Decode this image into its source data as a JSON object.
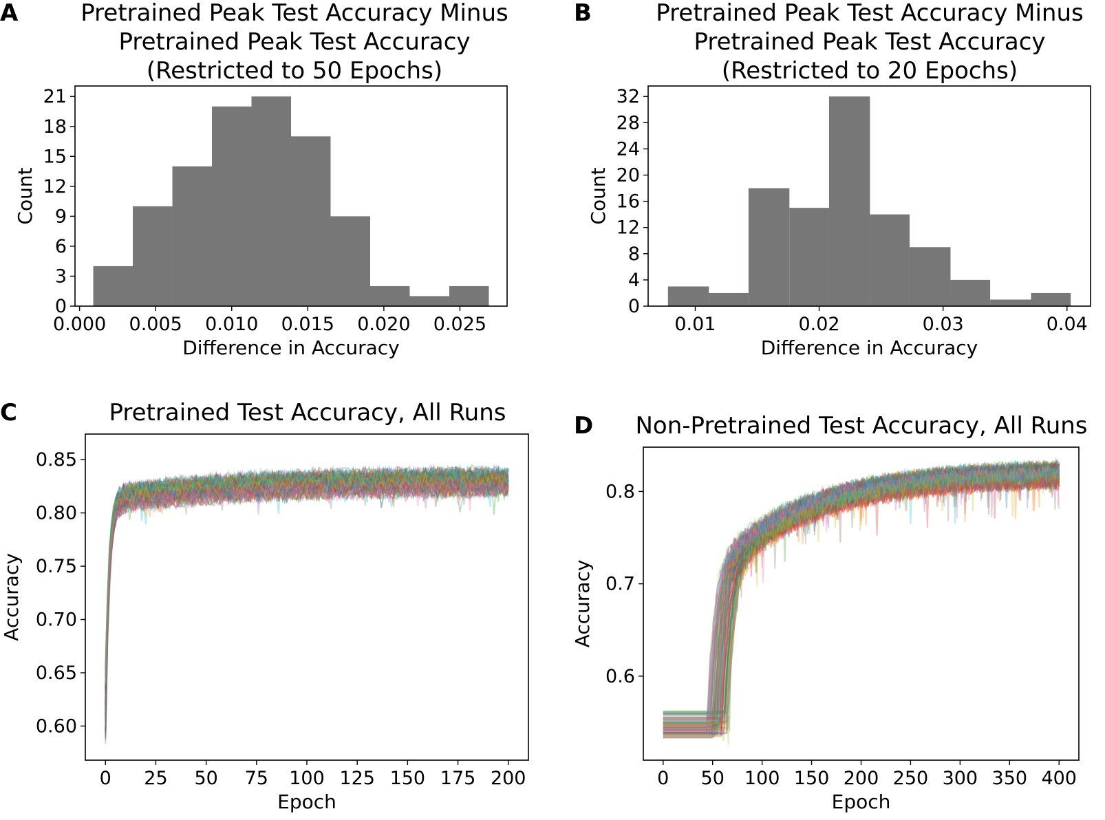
{
  "chart_data": [
    {
      "id": "A",
      "panel_label": "A",
      "type": "bar",
      "title_lines": [
        "Pretrained Peak Test Accuracy Minus",
        "Pretrained Peak Test Accuracy",
        "(Restricted to 50 Epochs)"
      ],
      "xlabel": "Difference in Accuracy",
      "ylabel": "Count",
      "bins": [
        {
          "x0": 0.0009,
          "x1": 0.0035,
          "count": 4
        },
        {
          "x0": 0.0035,
          "x1": 0.0061,
          "count": 10
        },
        {
          "x0": 0.0061,
          "x1": 0.0087,
          "count": 14
        },
        {
          "x0": 0.0087,
          "x1": 0.0113,
          "count": 20
        },
        {
          "x0": 0.0113,
          "x1": 0.0139,
          "count": 21
        },
        {
          "x0": 0.0139,
          "x1": 0.0165,
          "count": 17
        },
        {
          "x0": 0.0165,
          "x1": 0.0191,
          "count": 9
        },
        {
          "x0": 0.0191,
          "x1": 0.0217,
          "count": 2
        },
        {
          "x0": 0.0217,
          "x1": 0.0243,
          "count": 1
        },
        {
          "x0": 0.0243,
          "x1": 0.0269,
          "count": 2
        }
      ],
      "xlim": [
        -0.0003,
        0.0281
      ],
      "ylim": [
        0,
        22.05
      ],
      "xticks": [
        0.0,
        0.005,
        0.01,
        0.015,
        0.02,
        0.025
      ],
      "xtick_labels": [
        "0.000",
        "0.005",
        "0.010",
        "0.015",
        "0.020",
        "0.025"
      ],
      "yticks": [
        0,
        3,
        6,
        9,
        12,
        15,
        18,
        21
      ],
      "ytick_labels": [
        "0",
        "3",
        "6",
        "9",
        "12",
        "15",
        "18",
        "21"
      ],
      "bar_color": "#777777"
    },
    {
      "id": "B",
      "panel_label": "B",
      "type": "bar",
      "title_lines": [
        "Pretrained Peak Test Accuracy Minus",
        "Pretrained Peak Test Accuracy",
        "(Restricted to 20 Epochs)"
      ],
      "xlabel": "Difference in Accuracy",
      "ylabel": "Count",
      "bins": [
        {
          "x0": 0.0078,
          "x1": 0.0111,
          "count": 3
        },
        {
          "x0": 0.0111,
          "x1": 0.0143,
          "count": 2
        },
        {
          "x0": 0.0143,
          "x1": 0.0176,
          "count": 18
        },
        {
          "x0": 0.0176,
          "x1": 0.0208,
          "count": 15
        },
        {
          "x0": 0.0208,
          "x1": 0.0241,
          "count": 32
        },
        {
          "x0": 0.0241,
          "x1": 0.0273,
          "count": 14
        },
        {
          "x0": 0.0273,
          "x1": 0.0306,
          "count": 9
        },
        {
          "x0": 0.0306,
          "x1": 0.0338,
          "count": 4
        },
        {
          "x0": 0.0338,
          "x1": 0.0371,
          "count": 1
        },
        {
          "x0": 0.0371,
          "x1": 0.0403,
          "count": 2
        }
      ],
      "xlim": [
        0.0062,
        0.0419
      ],
      "ylim": [
        0,
        33.6
      ],
      "xticks": [
        0.01,
        0.02,
        0.03,
        0.04
      ],
      "xtick_labels": [
        "0.01",
        "0.02",
        "0.03",
        "0.04"
      ],
      "yticks": [
        0,
        4,
        8,
        12,
        16,
        20,
        24,
        28,
        32
      ],
      "ytick_labels": [
        "0",
        "4",
        "8",
        "12",
        "16",
        "20",
        "24",
        "28",
        "32"
      ],
      "bar_color": "#777777"
    },
    {
      "id": "C",
      "panel_label": "C",
      "type": "line",
      "title_lines": [
        "Pretrained Test Accuracy, All Runs"
      ],
      "xlabel": "Epoch",
      "ylabel": "Accuracy",
      "n_runs": 100,
      "epochs": 200,
      "curve_profile": {
        "start": 0.62,
        "plateau_early": 0.812,
        "plateau_late": 0.83,
        "rise_time": 1.8,
        "noise": 0.007
      },
      "xlim": [
        -10,
        210
      ],
      "ylim": [
        0.568,
        0.874
      ],
      "xticks": [
        0,
        25,
        50,
        75,
        100,
        125,
        150,
        175,
        200
      ],
      "xtick_labels": [
        "0",
        "25",
        "50",
        "75",
        "100",
        "125",
        "150",
        "175",
        "200"
      ],
      "yticks": [
        0.6,
        0.65,
        0.7,
        0.75,
        0.8,
        0.85
      ],
      "ytick_labels": [
        "0.60",
        "0.65",
        "0.70",
        "0.75",
        "0.80",
        "0.85"
      ],
      "line_alpha": 0.3
    },
    {
      "id": "D",
      "panel_label": "D",
      "type": "line",
      "title_lines": [
        "Non-Pretrained Test Accuracy, All Runs"
      ],
      "xlabel": "Epoch",
      "ylabel": "Accuracy",
      "n_runs": 100,
      "epochs": 400,
      "curve_profile": {
        "flat_start": 0.548,
        "jump_epoch": 55,
        "jump_top": 0.71,
        "plateau": 0.82,
        "noise": 0.008
      },
      "xlim": [
        -20,
        420
      ],
      "ylim": [
        0.509,
        0.848
      ],
      "xticks": [
        0,
        50,
        100,
        150,
        200,
        250,
        300,
        350,
        400
      ],
      "xtick_labels": [
        "0",
        "50",
        "100",
        "150",
        "200",
        "250",
        "300",
        "350",
        "400"
      ],
      "yticks": [
        0.6,
        0.7,
        0.8
      ],
      "ytick_labels": [
        "0.6",
        "0.7",
        "0.8"
      ],
      "line_alpha": 0.3
    }
  ],
  "palette": [
    "#1f77b4",
    "#ff7f0e",
    "#2ca02c",
    "#d62728",
    "#9467bd",
    "#8c564b",
    "#e377c2",
    "#7f7f7f",
    "#bcbd22",
    "#17becf"
  ]
}
